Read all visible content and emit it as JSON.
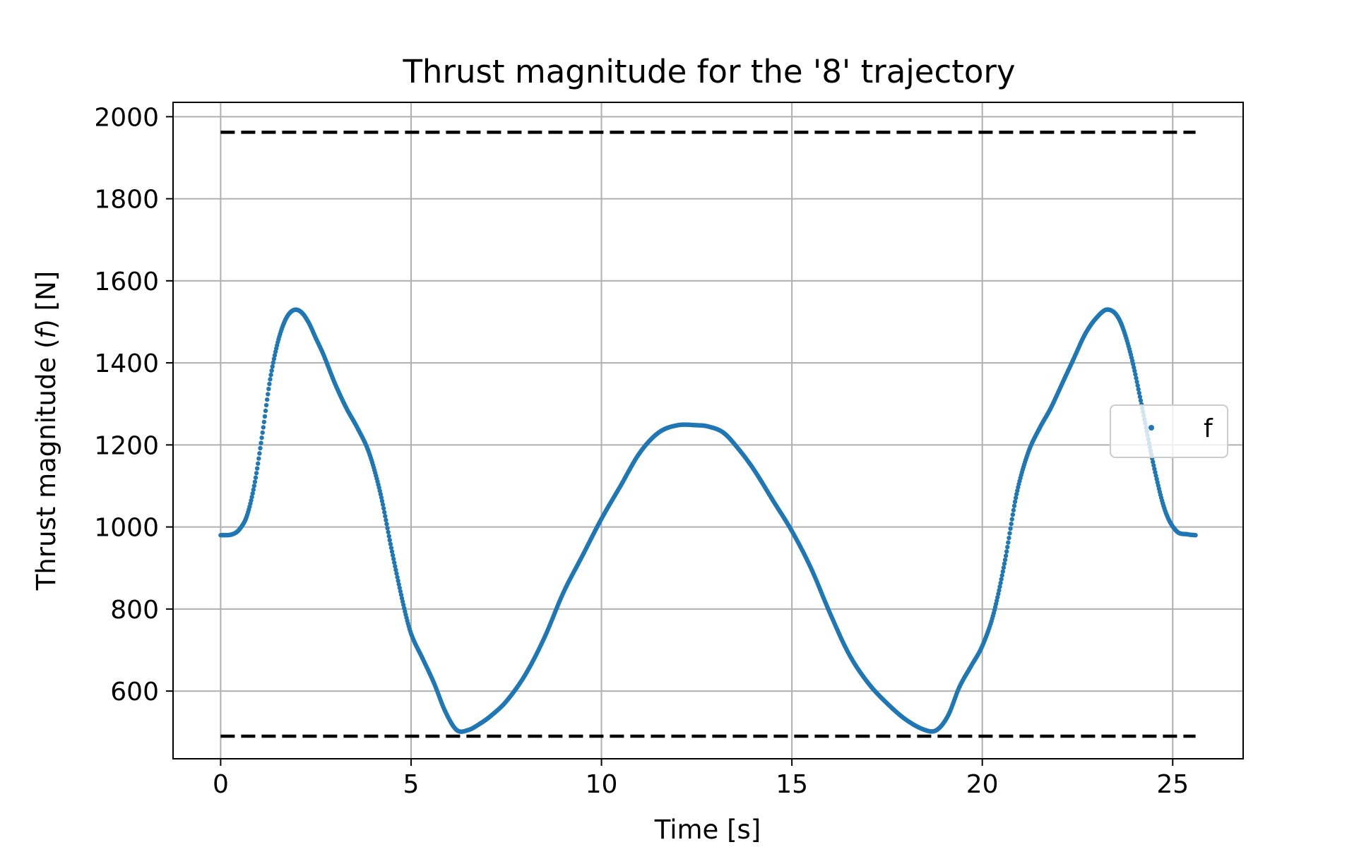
{
  "chart_data": {
    "type": "scatter",
    "title": "Thrust magnitude for the '8' trajectory",
    "xlabel": "Time [s]",
    "ylabel": "Thrust magnitude (f) [N]",
    "xlim": [
      -1.25,
      26.85
    ],
    "ylim": [
      435,
      2035
    ],
    "xticks": [
      0,
      5,
      10,
      15,
      20,
      25
    ],
    "yticks": [
      600,
      800,
      1000,
      1200,
      1400,
      1600,
      1800,
      2000
    ],
    "grid": true,
    "legend_position": "center-right",
    "series": [
      {
        "name": "f",
        "color": "#1f77b4",
        "marker": "dot",
        "x": [
          0,
          0.3,
          0.5,
          0.7,
          0.9,
          1.1,
          1.3,
          1.5,
          1.7,
          1.9,
          2.1,
          2.3,
          2.5,
          2.7,
          3.0,
          3.3,
          3.6,
          3.9,
          4.2,
          4.5,
          4.8,
          5.0,
          5.3,
          5.6,
          5.9,
          6.2,
          6.5,
          6.8,
          7.1,
          7.5,
          8.0,
          8.5,
          9.0,
          9.5,
          10.0,
          10.5,
          11.0,
          11.5,
          12.0,
          12.5,
          12.8,
          13.2,
          13.6,
          14.0,
          14.5,
          15.0,
          15.5,
          16.0,
          16.5,
          17.0,
          17.5,
          18.0,
          18.5,
          18.8,
          19.1,
          19.4,
          19.7,
          20.0,
          20.3,
          20.6,
          20.9,
          21.2,
          21.5,
          21.8,
          22.1,
          22.4,
          22.7,
          23.0,
          23.3,
          23.6,
          23.9,
          24.2,
          24.5,
          24.8,
          25.1,
          25.4,
          25.6
        ],
        "y": [
          980,
          982,
          995,
          1030,
          1110,
          1230,
          1360,
          1450,
          1505,
          1528,
          1525,
          1500,
          1460,
          1420,
          1350,
          1290,
          1240,
          1180,
          1080,
          940,
          810,
          740,
          680,
          620,
          550,
          505,
          505,
          520,
          540,
          575,
          640,
          730,
          840,
          930,
          1020,
          1100,
          1180,
          1230,
          1248,
          1248,
          1245,
          1230,
          1190,
          1140,
          1065,
          990,
          900,
          790,
          690,
          620,
          570,
          530,
          505,
          505,
          540,
          610,
          660,
          710,
          790,
          920,
          1080,
          1180,
          1240,
          1290,
          1350,
          1410,
          1470,
          1510,
          1530,
          1505,
          1420,
          1290,
          1150,
          1040,
          990,
          982,
          980
        ]
      }
    ],
    "bounds": [
      {
        "style": "dashed",
        "color": "#000000",
        "y": 1962,
        "x": [
          0,
          25.6
        ]
      },
      {
        "style": "dashed",
        "color": "#000000",
        "y": 490,
        "x": [
          0,
          25.6
        ]
      }
    ]
  }
}
